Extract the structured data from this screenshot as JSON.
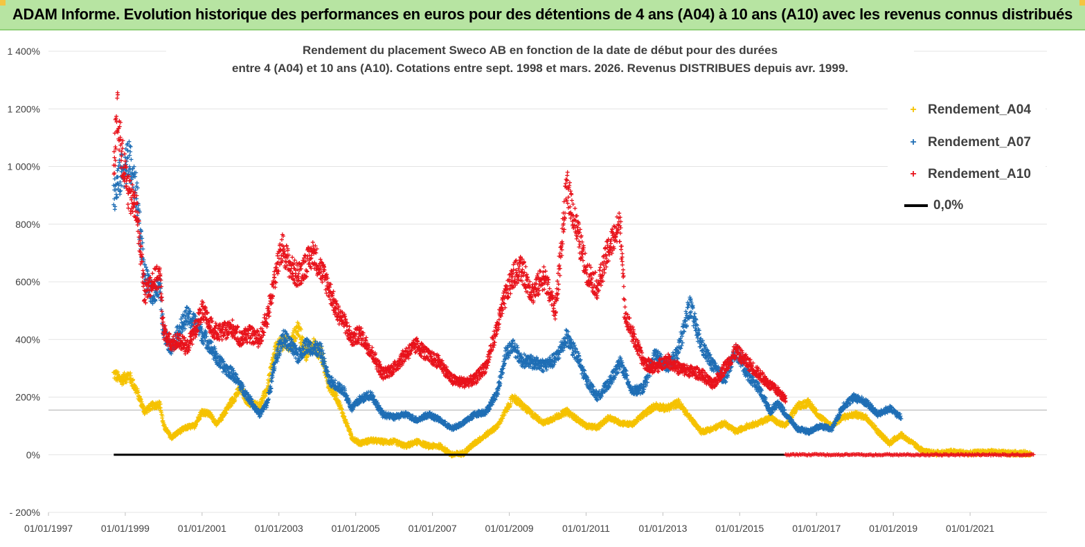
{
  "header": {
    "banner_title": "ADAM Informe. Evolution historique des performances en euros pour des détentions de 4 ans (A04) à 10 ans (A10) avec les revenus connus distribués"
  },
  "chart_data": {
    "type": "scatter",
    "title_line1": "Rendement du placement Sweco AB en fonction de la date de début pour des durées",
    "title_line2": "entre 4 (A04) et 10 ans (A10).  Cotations entre sept. 1998 et mars. 2026.  Revenus DISTRIBUES depuis avr. 1999.",
    "x_ticks": [
      "01/01/1997",
      "01/01/1999",
      "01/01/2001",
      "01/01/2003",
      "01/01/2005",
      "01/01/2007",
      "01/01/2009",
      "01/01/2011",
      "01/01/2013",
      "01/01/2015",
      "01/01/2017",
      "01/01/2019",
      "01/01/2021"
    ],
    "y_ticks": [
      "1 400%",
      "1 200%",
      "1 000%",
      "800%",
      "600%",
      "400%",
      "200%",
      "0%",
      "- 200%"
    ],
    "y_values": [
      1400,
      1200,
      1000,
      800,
      600,
      400,
      200,
      0,
      -200
    ],
    "xlim": [
      1997.0,
      2023.0
    ],
    "ylim": [
      -200,
      1400
    ],
    "grid": "horizontal",
    "legend": {
      "position": "top-right",
      "items": [
        {
          "label": "Rendement_A04",
          "color": "#f5c200",
          "kind": "marker"
        },
        {
          "label": "Rendement_A07",
          "color": "#1f6eb5",
          "kind": "marker"
        },
        {
          "label": "Rendement_A10",
          "color": "#e8121b",
          "kind": "marker"
        },
        {
          "label": "0,0%",
          "color": "#000000",
          "kind": "line"
        }
      ]
    },
    "zero_line": {
      "label": "0,0%",
      "value": 0,
      "x_start": 1998.7,
      "x_end": 2016.2
    },
    "reference_line": {
      "value": 155
    },
    "series": [
      {
        "name": "Rendement_A04",
        "color": "#f5c200",
        "end_x": 2022.6,
        "anchors": [
          [
            1998.7,
            280
          ],
          [
            1998.9,
            260
          ],
          [
            1999.1,
            275
          ],
          [
            1999.3,
            220
          ],
          [
            1999.5,
            150
          ],
          [
            1999.7,
            170
          ],
          [
            1999.9,
            175
          ],
          [
            2000.0,
            100
          ],
          [
            2000.2,
            60
          ],
          [
            2000.4,
            80
          ],
          [
            2000.6,
            95
          ],
          [
            2000.8,
            100
          ],
          [
            2001.0,
            150
          ],
          [
            2001.2,
            140
          ],
          [
            2001.4,
            105
          ],
          [
            2001.6,
            150
          ],
          [
            2001.8,
            190
          ],
          [
            2002.0,
            230
          ],
          [
            2002.2,
            180
          ],
          [
            2002.5,
            170
          ],
          [
            2002.7,
            230
          ],
          [
            2002.9,
            360
          ],
          [
            2003.1,
            390
          ],
          [
            2003.3,
            380
          ],
          [
            2003.5,
            440
          ],
          [
            2003.7,
            350
          ],
          [
            2003.9,
            380
          ],
          [
            2004.1,
            350
          ],
          [
            2004.3,
            240
          ],
          [
            2004.5,
            200
          ],
          [
            2004.7,
            130
          ],
          [
            2004.9,
            60
          ],
          [
            2005.1,
            40
          ],
          [
            2005.4,
            50
          ],
          [
            2005.7,
            45
          ],
          [
            2006.0,
            45
          ],
          [
            2006.3,
            30
          ],
          [
            2006.6,
            45
          ],
          [
            2006.9,
            30
          ],
          [
            2007.2,
            30
          ],
          [
            2007.5,
            0
          ],
          [
            2007.8,
            5
          ],
          [
            2008.1,
            40
          ],
          [
            2008.4,
            70
          ],
          [
            2008.7,
            100
          ],
          [
            2008.9,
            150
          ],
          [
            2009.1,
            200
          ],
          [
            2009.3,
            175
          ],
          [
            2009.6,
            140
          ],
          [
            2009.9,
            110
          ],
          [
            2010.2,
            130
          ],
          [
            2010.5,
            150
          ],
          [
            2010.8,
            120
          ],
          [
            2011.0,
            100
          ],
          [
            2011.3,
            95
          ],
          [
            2011.6,
            130
          ],
          [
            2011.9,
            110
          ],
          [
            2012.2,
            105
          ],
          [
            2012.5,
            140
          ],
          [
            2012.8,
            170
          ],
          [
            2013.1,
            160
          ],
          [
            2013.4,
            180
          ],
          [
            2013.7,
            130
          ],
          [
            2014.0,
            80
          ],
          [
            2014.3,
            90
          ],
          [
            2014.6,
            110
          ],
          [
            2014.9,
            80
          ],
          [
            2015.2,
            100
          ],
          [
            2015.5,
            110
          ],
          [
            2015.8,
            130
          ],
          [
            2016.0,
            110
          ],
          [
            2016.2,
            100
          ],
          [
            2016.5,
            170
          ],
          [
            2016.8,
            180
          ],
          [
            2017.1,
            130
          ],
          [
            2017.4,
            100
          ],
          [
            2017.7,
            130
          ],
          [
            2018.0,
            140
          ],
          [
            2018.3,
            130
          ],
          [
            2018.6,
            80
          ],
          [
            2018.9,
            40
          ],
          [
            2019.2,
            70
          ],
          [
            2019.5,
            40
          ],
          [
            2019.8,
            10
          ],
          [
            2020.1,
            5
          ],
          [
            2020.5,
            10
          ],
          [
            2021.0,
            5
          ],
          [
            2021.5,
            10
          ],
          [
            2022.0,
            5
          ],
          [
            2022.6,
            5
          ]
        ]
      },
      {
        "name": "Rendement_A07",
        "color": "#1f6eb5",
        "end_x": 2019.2,
        "anchors": [
          [
            1998.7,
            900
          ],
          [
            1998.9,
            980
          ],
          [
            1999.1,
            1030
          ],
          [
            1999.3,
            900
          ],
          [
            1999.5,
            620
          ],
          [
            1999.7,
            560
          ],
          [
            1999.9,
            580
          ],
          [
            2000.0,
            420
          ],
          [
            2000.2,
            370
          ],
          [
            2000.4,
            430
          ],
          [
            2000.6,
            480
          ],
          [
            2000.8,
            460
          ],
          [
            2001.0,
            420
          ],
          [
            2001.2,
            380
          ],
          [
            2001.4,
            330
          ],
          [
            2001.6,
            300
          ],
          [
            2001.8,
            280
          ],
          [
            2002.0,
            240
          ],
          [
            2002.2,
            200
          ],
          [
            2002.5,
            140
          ],
          [
            2002.7,
            180
          ],
          [
            2002.9,
            320
          ],
          [
            2003.1,
            410
          ],
          [
            2003.3,
            380
          ],
          [
            2003.5,
            340
          ],
          [
            2003.7,
            380
          ],
          [
            2003.9,
            370
          ],
          [
            2004.1,
            360
          ],
          [
            2004.3,
            260
          ],
          [
            2004.5,
            240
          ],
          [
            2004.7,
            220
          ],
          [
            2004.9,
            160
          ],
          [
            2005.1,
            190
          ],
          [
            2005.4,
            210
          ],
          [
            2005.7,
            140
          ],
          [
            2006.0,
            130
          ],
          [
            2006.3,
            140
          ],
          [
            2006.6,
            120
          ],
          [
            2006.9,
            140
          ],
          [
            2007.2,
            120
          ],
          [
            2007.5,
            90
          ],
          [
            2007.8,
            110
          ],
          [
            2008.1,
            140
          ],
          [
            2008.4,
            150
          ],
          [
            2008.7,
            220
          ],
          [
            2008.9,
            350
          ],
          [
            2009.1,
            380
          ],
          [
            2009.3,
            330
          ],
          [
            2009.6,
            320
          ],
          [
            2009.9,
            310
          ],
          [
            2010.2,
            330
          ],
          [
            2010.5,
            410
          ],
          [
            2010.8,
            330
          ],
          [
            2011.0,
            260
          ],
          [
            2011.3,
            200
          ],
          [
            2011.6,
            250
          ],
          [
            2011.9,
            320
          ],
          [
            2012.2,
            220
          ],
          [
            2012.5,
            230
          ],
          [
            2012.8,
            350
          ],
          [
            2013.1,
            300
          ],
          [
            2013.4,
            360
          ],
          [
            2013.7,
            520
          ],
          [
            2014.0,
            380
          ],
          [
            2014.3,
            310
          ],
          [
            2014.6,
            260
          ],
          [
            2014.9,
            360
          ],
          [
            2015.2,
            280
          ],
          [
            2015.5,
            230
          ],
          [
            2015.8,
            150
          ],
          [
            2016.0,
            180
          ],
          [
            2016.2,
            140
          ],
          [
            2016.5,
            90
          ],
          [
            2016.8,
            80
          ],
          [
            2017.1,
            100
          ],
          [
            2017.4,
            90
          ],
          [
            2017.7,
            170
          ],
          [
            2018.0,
            200
          ],
          [
            2018.3,
            180
          ],
          [
            2018.6,
            140
          ],
          [
            2018.9,
            160
          ],
          [
            2019.2,
            130
          ]
        ]
      },
      {
        "name": "Rendement_A10",
        "color": "#e8121b",
        "end_x": 2016.2,
        "anchors": [
          [
            1998.7,
            1000
          ],
          [
            1998.8,
            1200
          ],
          [
            1998.9,
            1050
          ],
          [
            1999.1,
            900
          ],
          [
            1999.3,
            850
          ],
          [
            1999.5,
            560
          ],
          [
            1999.7,
            600
          ],
          [
            1999.9,
            620
          ],
          [
            2000.0,
            430
          ],
          [
            2000.2,
            380
          ],
          [
            2000.4,
            400
          ],
          [
            2000.6,
            370
          ],
          [
            2000.8,
            430
          ],
          [
            2001.0,
            500
          ],
          [
            2001.2,
            450
          ],
          [
            2001.4,
            420
          ],
          [
            2001.6,
            430
          ],
          [
            2001.8,
            440
          ],
          [
            2002.0,
            400
          ],
          [
            2002.2,
            420
          ],
          [
            2002.5,
            400
          ],
          [
            2002.7,
            480
          ],
          [
            2002.9,
            620
          ],
          [
            2003.1,
            720
          ],
          [
            2003.3,
            650
          ],
          [
            2003.5,
            620
          ],
          [
            2003.7,
            660
          ],
          [
            2003.9,
            700
          ],
          [
            2004.1,
            640
          ],
          [
            2004.3,
            580
          ],
          [
            2004.5,
            500
          ],
          [
            2004.7,
            460
          ],
          [
            2004.9,
            400
          ],
          [
            2005.1,
            420
          ],
          [
            2005.4,
            360
          ],
          [
            2005.7,
            280
          ],
          [
            2006.0,
            300
          ],
          [
            2006.3,
            350
          ],
          [
            2006.6,
            380
          ],
          [
            2006.9,
            340
          ],
          [
            2007.2,
            320
          ],
          [
            2007.5,
            260
          ],
          [
            2007.8,
            250
          ],
          [
            2008.1,
            260
          ],
          [
            2008.4,
            310
          ],
          [
            2008.7,
            450
          ],
          [
            2008.9,
            550
          ],
          [
            2009.1,
            620
          ],
          [
            2009.3,
            650
          ],
          [
            2009.6,
            560
          ],
          [
            2009.9,
            620
          ],
          [
            2010.2,
            500
          ],
          [
            2010.5,
            930
          ],
          [
            2010.8,
            760
          ],
          [
            2011.0,
            640
          ],
          [
            2011.3,
            580
          ],
          [
            2011.6,
            720
          ],
          [
            2011.9,
            800
          ],
          [
            2012.0,
            500
          ],
          [
            2012.2,
            420
          ],
          [
            2012.5,
            320
          ],
          [
            2012.8,
            300
          ],
          [
            2013.1,
            330
          ],
          [
            2013.4,
            300
          ],
          [
            2013.7,
            290
          ],
          [
            2014.0,
            280
          ],
          [
            2014.3,
            240
          ],
          [
            2014.6,
            300
          ],
          [
            2014.9,
            360
          ],
          [
            2015.2,
            320
          ],
          [
            2015.5,
            280
          ],
          [
            2015.8,
            240
          ],
          [
            2016.0,
            220
          ],
          [
            2016.2,
            190
          ]
        ]
      }
    ]
  }
}
